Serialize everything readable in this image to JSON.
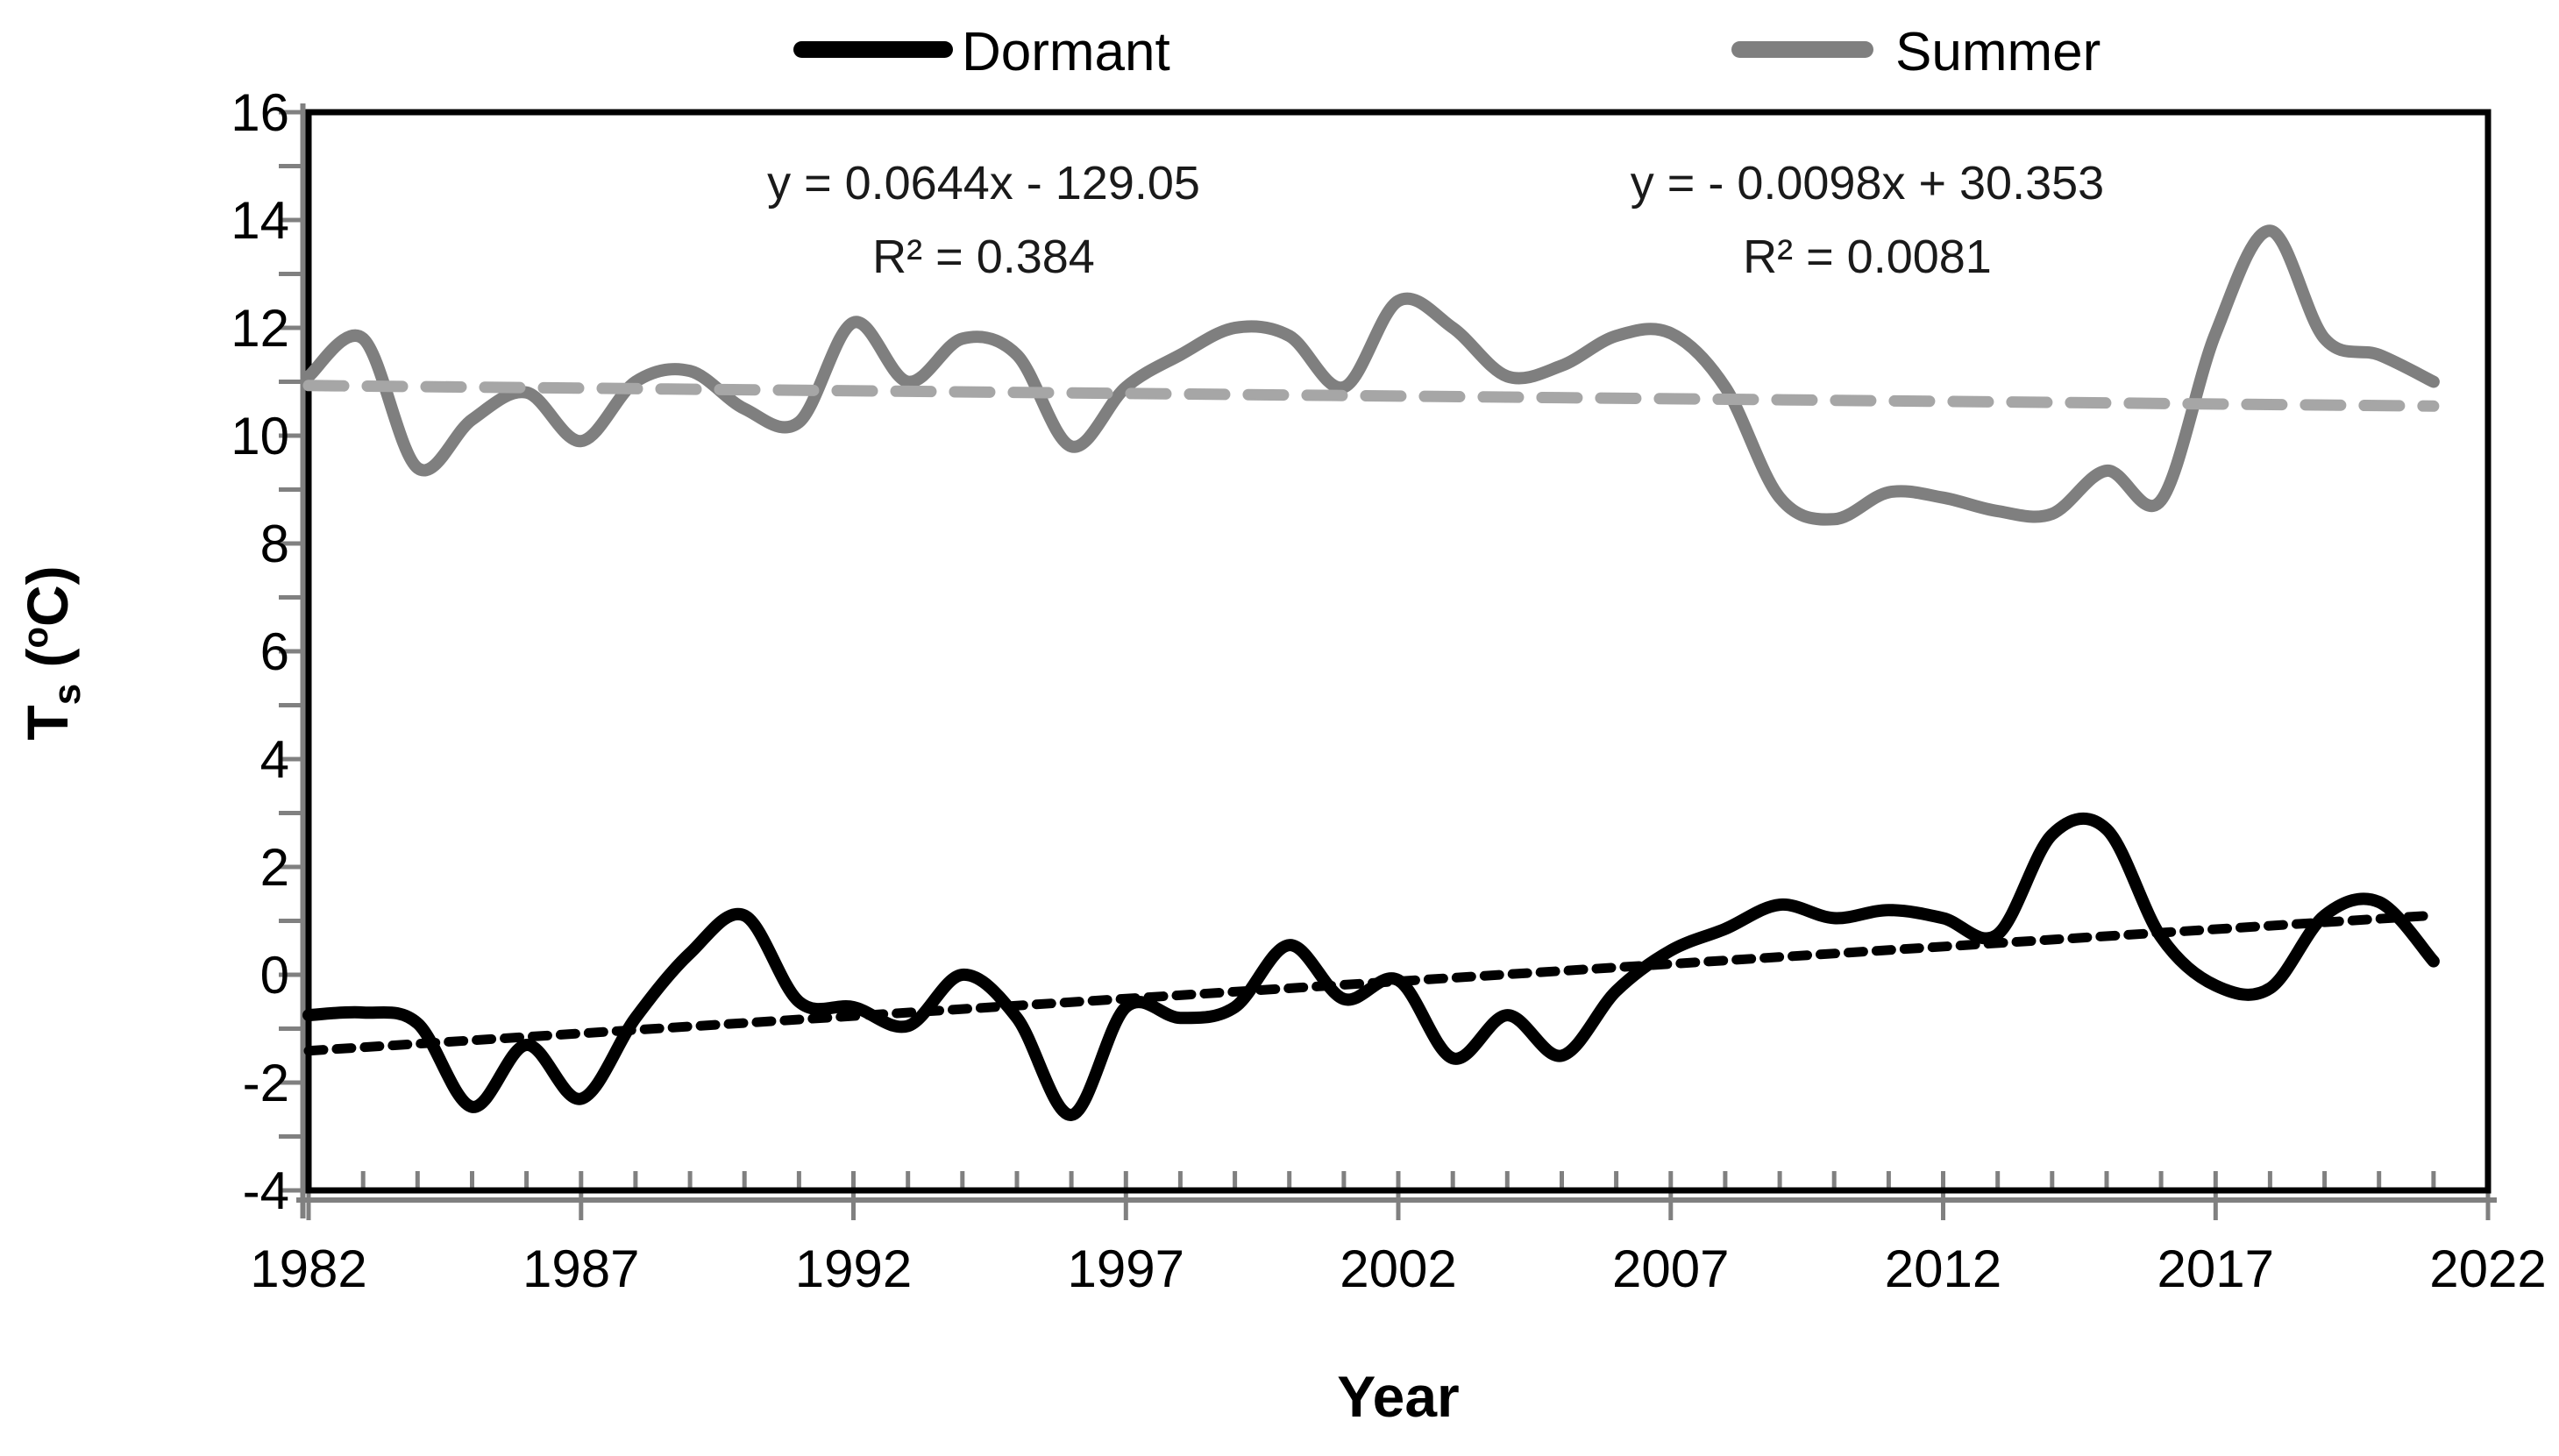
{
  "legend": [
    {
      "label": "Dormant",
      "color": "#000000"
    },
    {
      "label": "Summer",
      "color": "#7f7f7f"
    }
  ],
  "annotations": [
    {
      "equation": "y = 0.0644x - 129.05",
      "r2": "R² = 0.384"
    },
    {
      "equation": "y = - 0.0098x + 30.353",
      "r2": "R² = 0.0081"
    }
  ],
  "x_axis": {
    "title": "Year",
    "ticks": [
      1982,
      1987,
      1992,
      1997,
      2002,
      2007,
      2012,
      2017,
      2022
    ]
  },
  "y_axis": {
    "title_base": "T",
    "title_sub": "s",
    "title_mid": " (",
    "title_sup": "o",
    "title_end": "C)",
    "ticks": [
      16,
      14,
      12,
      10,
      8,
      6,
      4,
      2,
      0,
      -2,
      -4
    ]
  },
  "chart_data": {
    "type": "line",
    "title": "",
    "xlabel": "Year",
    "ylabel": "Ts (oC)",
    "xlim": [
      1982,
      2022
    ],
    "ylim": [
      -4,
      16
    ],
    "grid": false,
    "legend_position": "top",
    "x": [
      1982,
      1983,
      1984,
      1985,
      1986,
      1987,
      1988,
      1989,
      1990,
      1991,
      1992,
      1993,
      1994,
      1995,
      1996,
      1997,
      1998,
      1999,
      2000,
      2001,
      2002,
      2003,
      2004,
      2005,
      2006,
      2007,
      2008,
      2009,
      2010,
      2011,
      2012,
      2013,
      2014,
      2015,
      2016,
      2017,
      2018,
      2019,
      2020,
      2021
    ],
    "series": [
      {
        "name": "Dormant",
        "color": "#000000",
        "values": [
          -0.75,
          -0.7,
          -0.9,
          -2.45,
          -1.3,
          -2.3,
          -0.8,
          0.4,
          1.1,
          -0.5,
          -0.6,
          -0.95,
          0.0,
          -0.8,
          -2.6,
          -0.6,
          -0.8,
          -0.6,
          0.55,
          -0.45,
          -0.1,
          -1.55,
          -0.75,
          -1.5,
          -0.3,
          0.45,
          0.85,
          1.3,
          1.05,
          1.2,
          1.05,
          0.75,
          2.6,
          2.7,
          0.7,
          -0.2,
          -0.25,
          1.1,
          1.35,
          0.25
        ]
      },
      {
        "name": "Summer",
        "color": "#7f7f7f",
        "values": [
          11.1,
          11.8,
          9.4,
          10.3,
          10.8,
          9.9,
          11.0,
          11.2,
          10.5,
          10.25,
          12.1,
          11.0,
          11.8,
          11.5,
          9.8,
          10.9,
          11.5,
          12.0,
          11.85,
          10.9,
          12.5,
          12.0,
          11.1,
          11.3,
          11.85,
          11.9,
          10.9,
          8.85,
          8.45,
          8.95,
          8.85,
          8.6,
          8.55,
          9.35,
          8.8,
          11.9,
          13.8,
          11.8,
          11.5,
          11.0
        ]
      }
    ],
    "trendlines": [
      {
        "series": "Dormant",
        "slope": 0.0644,
        "intercept": -129.05,
        "equation": "y = 0.0644x - 129.05",
        "r2": 0.384,
        "color": "#000000"
      },
      {
        "series": "Summer",
        "slope": -0.0098,
        "intercept": 30.353,
        "equation": "y = - 0.0098x + 30.353",
        "r2": 0.0081,
        "color": "#a6a6a6"
      }
    ]
  }
}
